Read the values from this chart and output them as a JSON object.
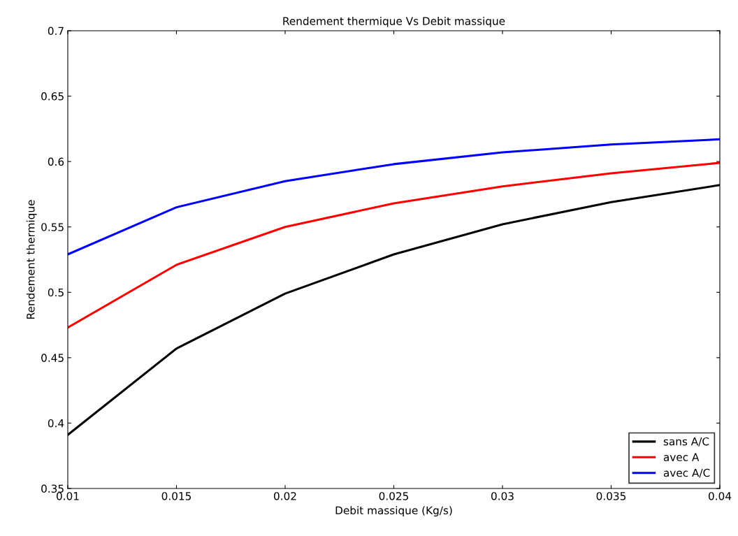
{
  "chart_data": {
    "type": "line",
    "title": "Rendement thermique Vs Debit massique",
    "xlabel": "Debit massique (Kg/s)",
    "ylabel": "Rendement thermique",
    "x": [
      0.01,
      0.015,
      0.02,
      0.025,
      0.03,
      0.035,
      0.04
    ],
    "series": [
      {
        "name": "sans A/C",
        "color": "#000000",
        "values": [
          0.391,
          0.457,
          0.499,
          0.529,
          0.552,
          0.569,
          0.582
        ]
      },
      {
        "name": "avec A",
        "color": "#ff0000",
        "values": [
          0.473,
          0.521,
          0.55,
          0.568,
          0.581,
          0.591,
          0.599
        ]
      },
      {
        "name": "avec A/C",
        "color": "#0000ff",
        "values": [
          0.529,
          0.565,
          0.585,
          0.598,
          0.607,
          0.613,
          0.617
        ]
      }
    ],
    "xlim": [
      0.01,
      0.04
    ],
    "xticks": [
      0.01,
      0.015,
      0.02,
      0.025,
      0.03,
      0.035,
      0.04
    ],
    "ylim": [
      0.35,
      0.7
    ],
    "yticks": [
      0.35,
      0.4,
      0.45,
      0.5,
      0.55,
      0.6,
      0.65,
      0.7
    ],
    "grid": false,
    "legend": "bottom right",
    "marker": "none",
    "line_style": "solid"
  }
}
